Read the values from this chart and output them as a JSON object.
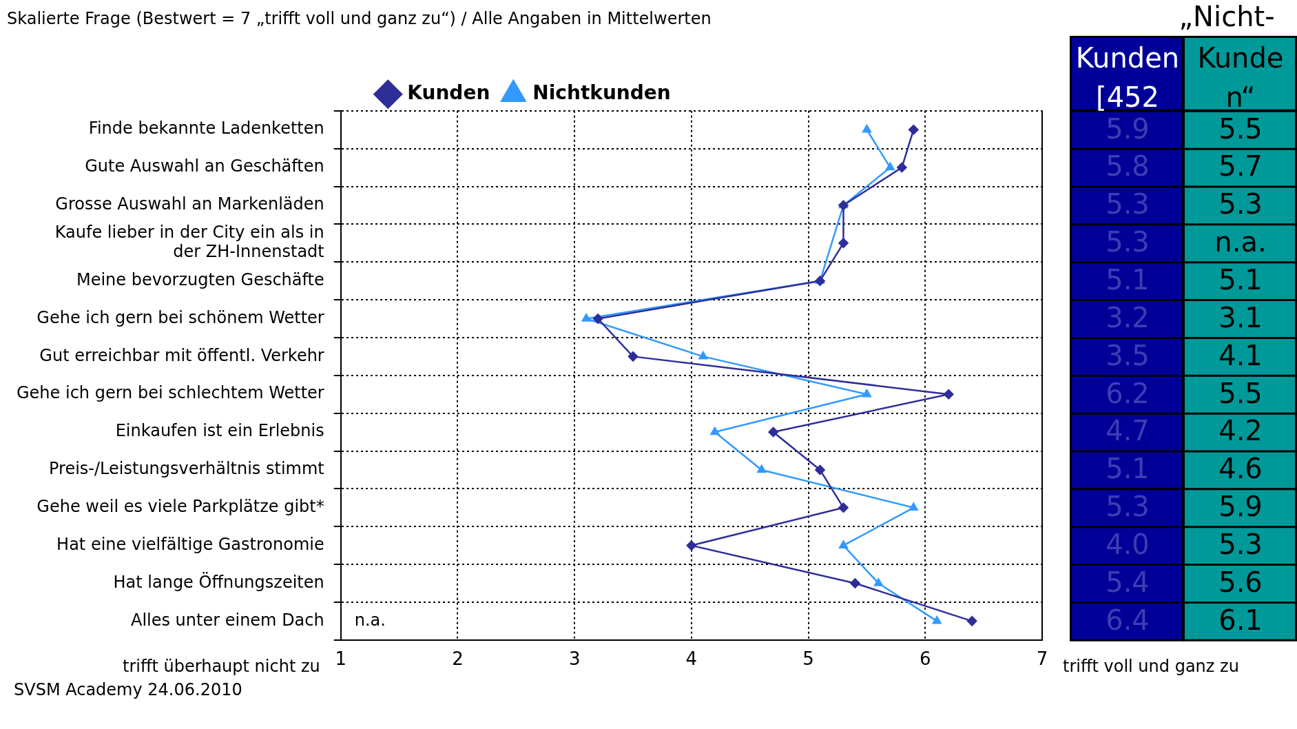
{
  "chart_data": {
    "type": "line",
    "orientation": "horizontal",
    "title": "Skalierte Frage (Bestwert = 7 „trifft voll und ganz zu“) / Alle Angaben in Mittelwerten",
    "categories": [
      "Finde bekannte Ladenketten",
      "Gute Auswahl an Geschäften",
      "Grosse Auswahl an Markenläden",
      "Kaufe lieber in der City ein als in der ZH-Innenstadt",
      "Meine bevorzugten Geschäfte",
      "Gehe ich gern bei schönem Wetter",
      "Gut erreichbar mit öffentl. Verkehr",
      "Gehe ich gern bei schlechtem Wetter",
      "Einkaufen ist ein Erlebnis",
      "Preis-/Leistungsverhältnis stimmt",
      "Gehe weil es viele Parkplätze gibt*",
      "Hat eine vielfältige Gastronomie",
      "Hat lange Öffnungszeiten",
      "Alles unter einem Dach"
    ],
    "series": [
      {
        "name": "Kunden",
        "color": "#2e2e99",
        "marker": "diamond",
        "values": [
          5.9,
          5.8,
          5.3,
          5.3,
          5.1,
          3.2,
          3.5,
          6.2,
          4.7,
          5.1,
          5.3,
          4.0,
          5.4,
          6.4
        ],
        "value_labels": [
          "5.9",
          "5.8",
          "5.3",
          "5.3",
          "5.1",
          "3.2",
          "3.5",
          "6.2",
          "4.7",
          "5.1",
          "5.3",
          "4.0",
          "5.4",
          "6.4"
        ]
      },
      {
        "name": "Nichtkunden",
        "color": "#3399ff",
        "marker": "triangle",
        "values": [
          5.5,
          5.7,
          5.3,
          null,
          5.1,
          3.1,
          4.1,
          5.5,
          4.2,
          4.6,
          5.9,
          5.3,
          5.6,
          6.1
        ],
        "value_labels": [
          "5.5",
          "5.7",
          "5.3",
          "n.a.",
          "5.1",
          "3.1",
          "4.1",
          "5.5",
          "4.2",
          "4.6",
          "5.9",
          "5.3",
          "5.6",
          "6.1"
        ]
      }
    ],
    "xlim": [
      1,
      7
    ],
    "xticks": [
      1,
      2,
      3,
      4,
      5,
      6,
      7
    ],
    "grid": true,
    "legend": "top",
    "line_style": "solid",
    "data_labels": true,
    "annotations": [
      "trifft überhaupt nicht zu",
      "trifft voll und ganz zu",
      "SVSM Academy 24.06.2010",
      "Kunden [452",
      "„Nicht-Kunden“",
      "n.a."
    ]
  }
}
